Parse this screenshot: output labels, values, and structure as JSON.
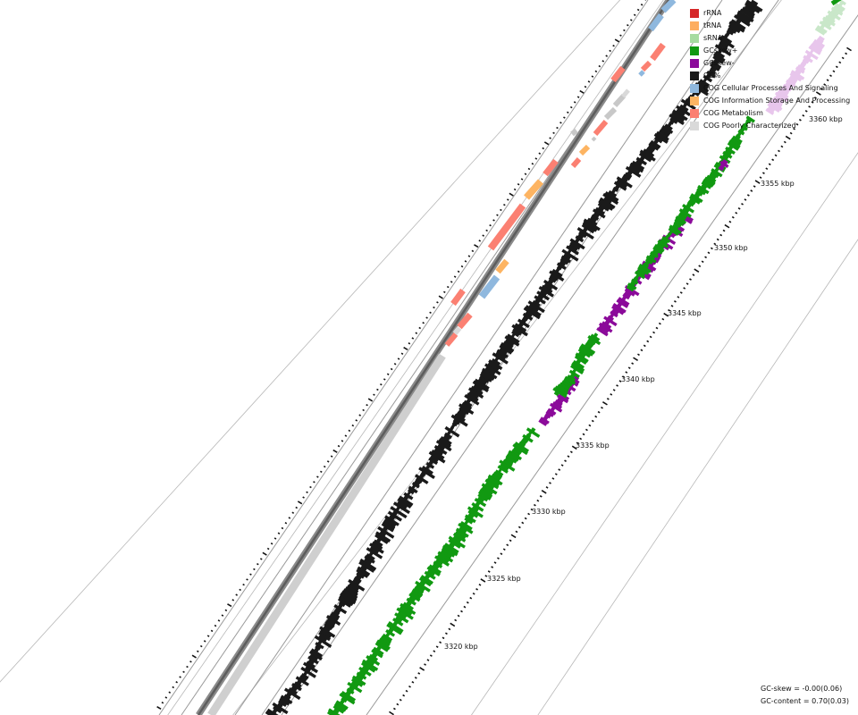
{
  "legend": [
    {
      "label": "rRNA",
      "color": "#d62728"
    },
    {
      "label": "tRNA",
      "color": "#fdae61"
    },
    {
      "label": "sRNA",
      "color": "#a6dba0"
    },
    {
      "label": "GCskew+",
      "color": "#119911"
    },
    {
      "label": "GCskew-",
      "color": "#8b0a9a"
    },
    {
      "label": "GC%",
      "color": "#1a1a1a"
    },
    {
      "label": "COG Cellular Processes And Signaling",
      "color": "#8fb8de"
    },
    {
      "label": "COG Information Storage And Processing",
      "color": "#fdb462"
    },
    {
      "label": "COG Metabolism",
      "color": "#fb8072"
    },
    {
      "label": "COG Poorly Characterized",
      "color": "#d9d9d9"
    }
  ],
  "ticks": [
    {
      "label": "3320 kbp"
    },
    {
      "label": "3325 kbp"
    },
    {
      "label": "3330 kbp"
    },
    {
      "label": "3335 kbp"
    },
    {
      "label": "3340 kbp"
    },
    {
      "label": "3345 kbp"
    },
    {
      "label": "3350 kbp"
    },
    {
      "label": "3355 kbp"
    },
    {
      "label": "3360 kbp"
    }
  ],
  "stats": {
    "gc_skew": "GC-skew = -0.00(0.06)",
    "gc_content": "GC-content = 0.70(0.03)"
  }
}
